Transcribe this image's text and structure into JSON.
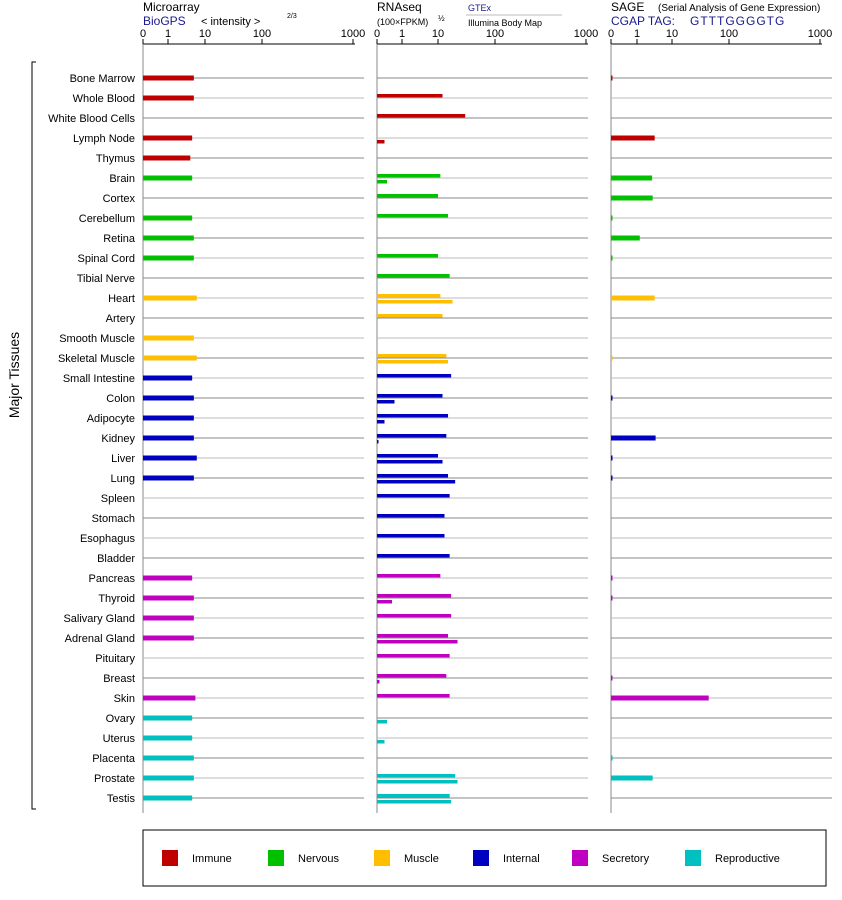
{
  "panels": {
    "microarray": {
      "title": "Microarray",
      "source": "BioGPS",
      "metric": "< intensity >",
      "exponent": "2/3",
      "ticks": [
        "0",
        "1",
        "10",
        "100",
        "1000"
      ]
    },
    "rnaseq": {
      "title": "RNAseq",
      "metric": "(100×FPKM)",
      "exponent": "½",
      "gtex_label": "GTEx",
      "ibm_label": "Illumina Body Map",
      "ticks": [
        "0",
        "1",
        "10",
        "100",
        "1000"
      ]
    },
    "sage": {
      "title": "SAGE",
      "subtitle": "(Serial Analysis of Gene Expression)",
      "tag_prefix": "CGAP TAG:",
      "tag_seq": "GTTTGGGGTG",
      "ticks": [
        "0",
        "1",
        "10",
        "100",
        "1000"
      ]
    }
  },
  "y_axis_label": "Major Tissues",
  "legend": [
    {
      "label": "Immune",
      "color": "#c00000"
    },
    {
      "label": "Nervous",
      "color": "#00c000"
    },
    {
      "label": "Muscle",
      "color": "#ffbf00"
    },
    {
      "label": "Internal",
      "color": "#0000c0"
    },
    {
      "label": "Secretory",
      "color": "#c000c0"
    },
    {
      "label": "Reproductive",
      "color": "#00c0c0"
    }
  ],
  "chart_data": {
    "type": "bar",
    "x_scale": "log-like (0, 1, 10, 100, 1000)",
    "x_range": [
      0,
      1000
    ],
    "categories": [
      "Bone Marrow",
      "Whole Blood",
      "White Blood Cells",
      "Lymph Node",
      "Thymus",
      "Brain",
      "Cortex",
      "Cerebellum",
      "Retina",
      "Spinal Cord",
      "Tibial Nerve",
      "Heart",
      "Artery",
      "Smooth Muscle",
      "Skeletal Muscle",
      "Small Intestine",
      "Colon",
      "Adipocyte",
      "Kidney",
      "Liver",
      "Lung",
      "Spleen",
      "Stomach",
      "Esophagus",
      "Bladder",
      "Pancreas",
      "Thyroid",
      "Salivary Gland",
      "Adrenal Gland",
      "Pituitary",
      "Breast",
      "Skin",
      "Ovary",
      "Uterus",
      "Placenta",
      "Prostate",
      "Testis"
    ],
    "groups": [
      "immune",
      "immune",
      "immune",
      "immune",
      "immune",
      "nervous",
      "nervous",
      "nervous",
      "nervous",
      "nervous",
      "nervous",
      "muscle",
      "muscle",
      "muscle",
      "muscle",
      "internal",
      "internal",
      "internal",
      "internal",
      "internal",
      "internal",
      "internal",
      "internal",
      "internal",
      "internal",
      "secretory",
      "secretory",
      "secretory",
      "secretory",
      "secretory",
      "secretory",
      "secretory",
      "reproductive",
      "reproductive",
      "reproductive",
      "reproductive",
      "reproductive"
    ],
    "series": [
      {
        "name": "Microarray",
        "values": [
          5,
          5,
          null,
          4.5,
          4,
          4.5,
          null,
          4.5,
          5,
          5,
          null,
          6,
          null,
          5,
          6,
          4.5,
          5,
          5,
          5,
          6,
          5,
          null,
          null,
          null,
          null,
          4.5,
          5,
          5,
          5,
          null,
          null,
          5.5,
          4.5,
          4.5,
          5,
          5,
          4.5
        ]
      },
      {
        "name": "GTEx",
        "values": [
          null,
          12,
          30,
          null,
          null,
          11,
          10,
          15,
          null,
          10,
          16,
          11,
          12,
          null,
          14,
          17,
          12,
          15,
          14,
          10,
          15,
          16,
          13,
          13,
          16,
          11,
          17,
          17,
          15,
          16,
          14,
          16,
          null,
          null,
          null,
          20,
          16
        ]
      },
      {
        "name": "Illumina Body Map",
        "values": [
          null,
          null,
          null,
          0.3,
          null,
          0.4,
          null,
          null,
          null,
          null,
          null,
          18,
          null,
          null,
          15,
          null,
          0.7,
          0.3,
          0.05,
          12,
          20,
          null,
          null,
          null,
          null,
          null,
          0.6,
          null,
          22,
          null,
          0.1,
          null,
          0.4,
          0.3,
          null,
          22,
          17
        ]
      },
      {
        "name": "SAGE",
        "values": [
          0.02,
          null,
          null,
          3.2,
          null,
          2.7,
          2.8,
          0.03,
          1.2,
          0.02,
          null,
          3.2,
          null,
          null,
          0.02,
          null,
          0.03,
          null,
          3.4,
          0.03,
          0.03,
          null,
          null,
          null,
          null,
          0.03,
          0.03,
          null,
          null,
          null,
          0.03,
          44,
          null,
          null,
          0.02,
          2.8,
          null
        ]
      }
    ]
  }
}
